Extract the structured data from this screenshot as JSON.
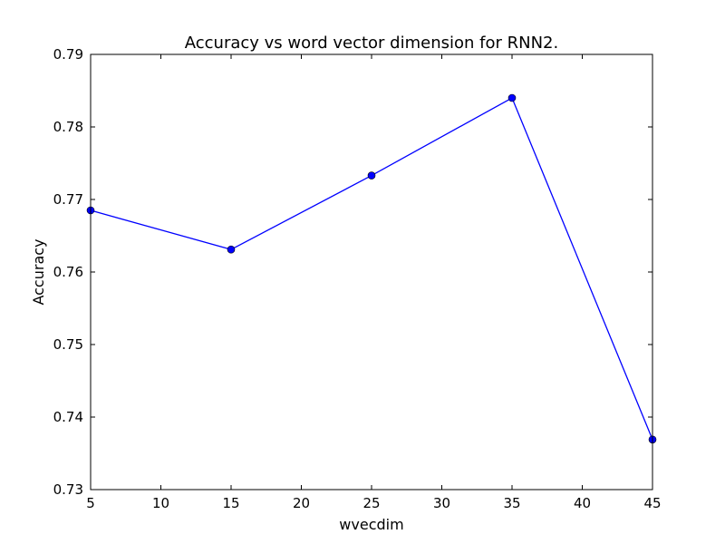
{
  "chart_data": {
    "type": "line",
    "title": "Accuracy vs word vector dimension for RNN2.",
    "xlabel": "wvecdim",
    "ylabel": "Accuracy",
    "xlim": [
      5,
      45
    ],
    "ylim": [
      0.73,
      0.79
    ],
    "xticks": [
      5,
      10,
      15,
      20,
      25,
      30,
      35,
      40,
      45
    ],
    "xtick_labels": [
      "5",
      "10",
      "15",
      "20",
      "25",
      "30",
      "35",
      "40",
      "45"
    ],
    "yticks": [
      0.73,
      0.74,
      0.75,
      0.76,
      0.77,
      0.78,
      0.79
    ],
    "ytick_labels": [
      "0.73",
      "0.74",
      "0.75",
      "0.76",
      "0.77",
      "0.78",
      "0.79"
    ],
    "grid": false,
    "series": [
      {
        "x": [
          5,
          15,
          25,
          35,
          45
        ],
        "y": [
          0.7685,
          0.7631,
          0.7733,
          0.784,
          0.7369
        ],
        "color": "#0000ff",
        "marker": "circle"
      }
    ]
  }
}
